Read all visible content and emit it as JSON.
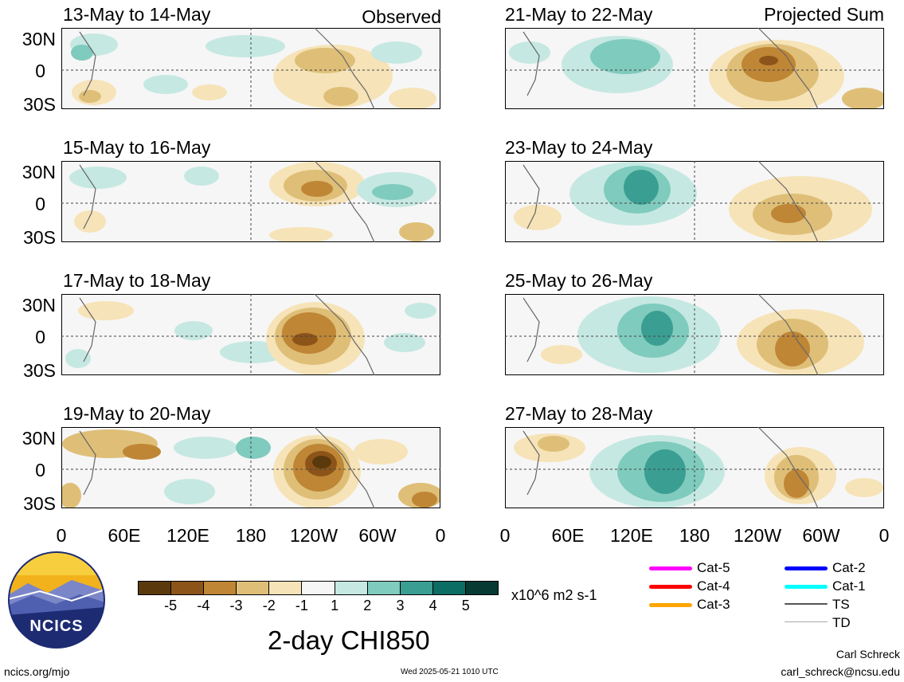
{
  "header": {
    "observed_label": "Observed",
    "projected_label": "Projected Sum"
  },
  "panels_left": [
    {
      "title": "13-May to 14-May"
    },
    {
      "title": "15-May to 16-May"
    },
    {
      "title": "17-May to 18-May"
    },
    {
      "title": "19-May to 20-May"
    }
  ],
  "panels_right": [
    {
      "title": "21-May to 22-May"
    },
    {
      "title": "23-May to 24-May"
    },
    {
      "title": "25-May to 26-May"
    },
    {
      "title": "27-May to 28-May"
    }
  ],
  "lat_labels": {
    "north": "30N",
    "eq": "0",
    "south": "30S"
  },
  "lon_labels": [
    "0",
    "60E",
    "120E",
    "180",
    "120W",
    "60W",
    "0"
  ],
  "colorbar": {
    "ticks": [
      "-5",
      "-4",
      "-3",
      "-2",
      "-1",
      "1",
      "2",
      "3",
      "4",
      "5"
    ],
    "units": "x10^6 m2 s-1",
    "colors": [
      "#5a3a0c",
      "#8c5418",
      "#bf8636",
      "#dfbf78",
      "#f6e3b8",
      "#f6f6f6",
      "#c6e8e2",
      "#7fcbbd",
      "#3a9f92",
      "#0b6d63",
      "#063a33"
    ]
  },
  "title": "2-day CHI850",
  "legend": [
    {
      "label": "Cat-5",
      "color": "#ff00ff"
    },
    {
      "label": "Cat-4",
      "color": "#ff0000"
    },
    {
      "label": "Cat-3",
      "color": "#ffa500"
    },
    {
      "label": "Cat-2",
      "color": "#0000ff"
    },
    {
      "label": "Cat-1",
      "color": "#00ffff"
    },
    {
      "label": "TS",
      "color": "#555555"
    },
    {
      "label": "TD",
      "color": "#aaaaaa"
    }
  ],
  "logo": {
    "text": "NCICS"
  },
  "footer": {
    "url": "ncics.org/mjo",
    "timestamp": "Wed 2025-05-21 1010 UTC",
    "author": "Carl Schreck",
    "email": "carl_schreck@ncsu.edu"
  }
}
